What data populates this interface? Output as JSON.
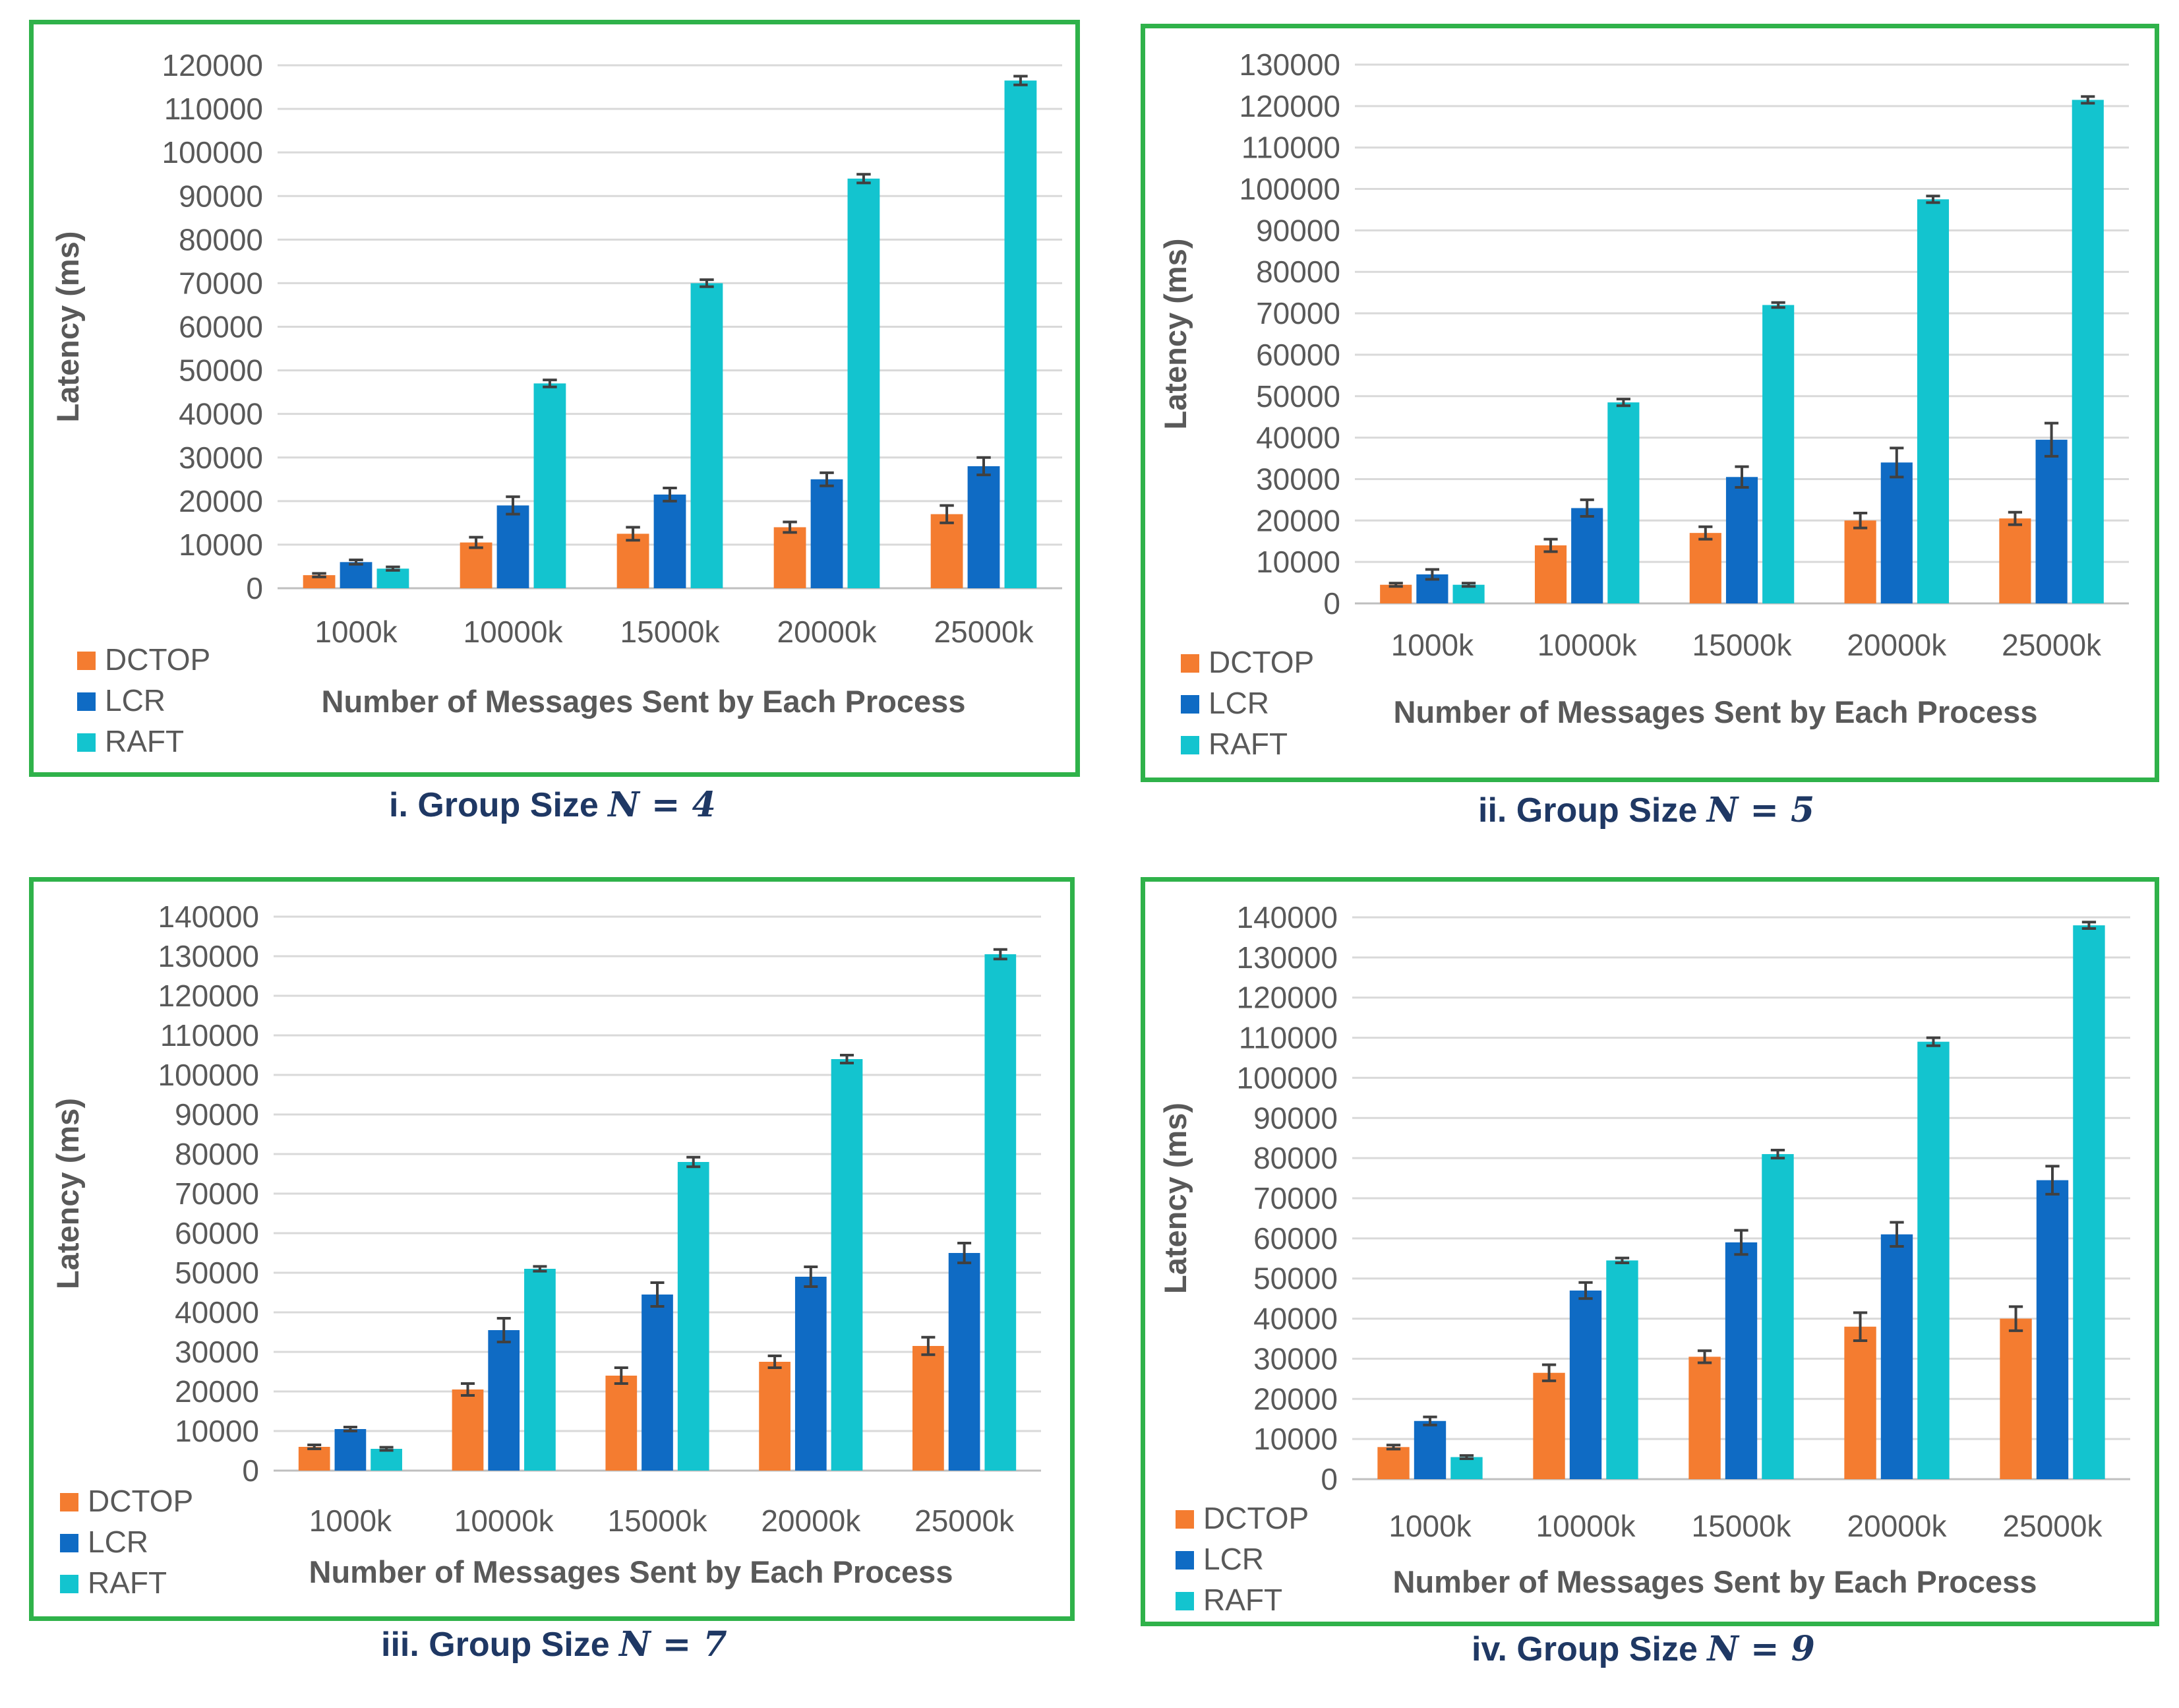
{
  "chart_data": [
    {
      "type": "bar",
      "caption": {
        "prefix": "i. Group Size ",
        "math": "N = 4"
      },
      "xlabel": "Number of Messages Sent by Each Process",
      "ylabel": "Latency (ms)",
      "categories": [
        "1000k",
        "10000k",
        "15000k",
        "20000k",
        "25000k"
      ],
      "ylim": [
        0,
        120000
      ],
      "ytick_step": 10000,
      "series": [
        {
          "name": "DCTOP",
          "color": "#f47c30",
          "values": [
            3000,
            10500,
            12500,
            14000,
            17000
          ],
          "errors": [
            400,
            1200,
            1500,
            1200,
            2000
          ]
        },
        {
          "name": "LCR",
          "color": "#0f6bc4",
          "values": [
            6000,
            19000,
            21500,
            25000,
            28000
          ],
          "errors": [
            500,
            2000,
            1500,
            1500,
            2000
          ]
        },
        {
          "name": "RAFT",
          "color": "#13c4cf",
          "values": [
            4500,
            47000,
            70000,
            94000,
            116500
          ],
          "errors": [
            400,
            800,
            800,
            1000,
            1000
          ]
        }
      ]
    },
    {
      "type": "bar",
      "caption": {
        "prefix": "ii. Group Size ",
        "math": "N = 5"
      },
      "xlabel": "Number of Messages Sent by Each Process",
      "ylabel": "Latency (ms)",
      "categories": [
        "1000k",
        "10000k",
        "15000k",
        "20000k",
        "25000k"
      ],
      "ylim": [
        0,
        130000
      ],
      "ytick_step": 10000,
      "series": [
        {
          "name": "DCTOP",
          "color": "#f47c30",
          "values": [
            4500,
            14000,
            17000,
            20000,
            20500
          ],
          "errors": [
            400,
            1500,
            1500,
            1800,
            1500
          ]
        },
        {
          "name": "LCR",
          "color": "#0f6bc4",
          "values": [
            7000,
            23000,
            30500,
            34000,
            39500
          ],
          "errors": [
            1200,
            2000,
            2500,
            3500,
            4000
          ]
        },
        {
          "name": "RAFT",
          "color": "#13c4cf",
          "values": [
            4500,
            48500,
            72000,
            97500,
            121500
          ],
          "errors": [
            400,
            800,
            600,
            800,
            800
          ]
        }
      ]
    },
    {
      "type": "bar",
      "caption": {
        "prefix": "iii. Group Size ",
        "math": "N = 7"
      },
      "xlabel": "Number of Messages Sent by Each Process",
      "ylabel": "Latency (ms)",
      "categories": [
        "1000k",
        "10000k",
        "15000k",
        "20000k",
        "25000k"
      ],
      "ylim": [
        0,
        140000
      ],
      "ytick_step": 10000,
      "series": [
        {
          "name": "DCTOP",
          "color": "#f47c30",
          "values": [
            6000,
            20500,
            24000,
            27500,
            31500
          ],
          "errors": [
            500,
            1500,
            2000,
            1500,
            2200
          ]
        },
        {
          "name": "LCR",
          "color": "#0f6bc4",
          "values": [
            10500,
            35500,
            44500,
            49000,
            55000
          ],
          "errors": [
            500,
            3000,
            3000,
            2500,
            2500
          ]
        },
        {
          "name": "RAFT",
          "color": "#13c4cf",
          "values": [
            5500,
            51000,
            78000,
            104000,
            130500
          ],
          "errors": [
            400,
            600,
            1200,
            1000,
            1200
          ]
        }
      ]
    },
    {
      "type": "bar",
      "caption": {
        "prefix": "iv.  Group Size ",
        "math": "N = 9"
      },
      "xlabel": "Number of Messages Sent by Each Process",
      "ylabel": "Latency (ms)",
      "categories": [
        "1000k",
        "10000k",
        "15000k",
        "20000k",
        "25000k"
      ],
      "ylim": [
        0,
        140000
      ],
      "ytick_step": 10000,
      "series": [
        {
          "name": "DCTOP",
          "color": "#f47c30",
          "values": [
            8000,
            26500,
            30500,
            38000,
            40000
          ],
          "errors": [
            500,
            2000,
            1500,
            3500,
            3000
          ]
        },
        {
          "name": "LCR",
          "color": "#0f6bc4",
          "values": [
            14500,
            47000,
            59000,
            61000,
            74500
          ],
          "errors": [
            1000,
            2000,
            3000,
            3000,
            3500
          ]
        },
        {
          "name": "RAFT",
          "color": "#13c4cf",
          "values": [
            5500,
            54500,
            81000,
            109000,
            138000
          ],
          "errors": [
            400,
            600,
            1000,
            1000,
            800
          ]
        }
      ]
    }
  ]
}
